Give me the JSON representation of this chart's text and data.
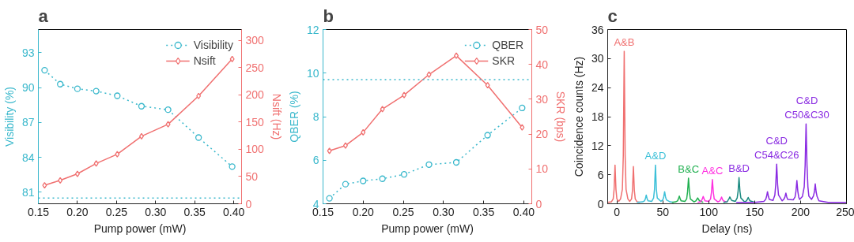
{
  "chart_data": [
    {
      "type": "line",
      "title": "a",
      "xlabel": "Pump power (mW)",
      "ylabel": "Visibility (%)",
      "y2label": "Nsift (Hz)",
      "x": [
        0.158,
        0.178,
        0.2,
        0.224,
        0.251,
        0.282,
        0.316,
        0.355,
        0.398
      ],
      "xlim": [
        0.15,
        0.41
      ],
      "xticks": [
        0.15,
        {
          "value": 0.2,
          "label": "0.20"
        },
        0.25,
        {
          "value": 0.3,
          "label": "0.30"
        },
        0.35,
        {
          "value": 0.4,
          "label": "0.40"
        }
      ],
      "ylim": [
        80,
        95
      ],
      "yticks": [
        81,
        84,
        87,
        90,
        93
      ],
      "y2lim": [
        0,
        320
      ],
      "y2ticks": [
        0,
        50,
        100,
        150,
        200,
        250,
        300
      ],
      "legend": "top right",
      "ref_lines": [
        {
          "axis": "y",
          "value": 80.5,
          "color": "#3ab8cc",
          "line_style": "dotted"
        }
      ],
      "series": [
        {
          "name": "Visibility",
          "color": "#3ab8cc",
          "marker": "circle",
          "line_style": "dotted",
          "values": [
            91.5,
            90.3,
            89.9,
            89.7,
            89.3,
            88.4,
            88.1,
            85.7,
            83.2
          ]
        },
        {
          "name": "Nsift",
          "color": "#f07070",
          "marker": "diamond",
          "line_style": "solid",
          "axis": "y2",
          "values": [
            34,
            43,
            55,
            74,
            91,
            124,
            146,
            198,
            266
          ]
        }
      ]
    },
    {
      "type": "line",
      "title": "b",
      "xlabel": "Pump power (mW)",
      "ylabel": "QBER (%)",
      "y2label": "SKR (bps)",
      "x": [
        0.158,
        0.178,
        0.2,
        0.224,
        0.251,
        0.282,
        0.316,
        0.355,
        0.398
      ],
      "xlim": [
        0.15,
        0.41
      ],
      "xticks": [
        0.15,
        {
          "value": 0.2,
          "label": "0.20"
        },
        0.25,
        {
          "value": 0.3,
          "label": "0.30"
        },
        0.35,
        {
          "value": 0.4,
          "label": "0.40"
        }
      ],
      "ylim": [
        4,
        12
      ],
      "yticks": [
        4,
        6,
        8,
        10,
        12
      ],
      "y2lim": [
        0,
        50
      ],
      "y2ticks": [
        0,
        10,
        20,
        30,
        40,
        50
      ],
      "legend": "top right",
      "ref_lines": [
        {
          "axis": "y",
          "value": 9.7,
          "color": "#3ab8cc",
          "line_style": "dotted"
        }
      ],
      "series": [
        {
          "name": "QBER",
          "color": "#3ab8cc",
          "marker": "circle",
          "line_style": "dotted",
          "values": [
            4.25,
            4.9,
            5.05,
            5.15,
            5.35,
            5.8,
            5.9,
            7.15,
            8.4
          ]
        },
        {
          "name": "SKR",
          "color": "#f07070",
          "marker": "diamond",
          "line_style": "solid",
          "axis": "y2",
          "values": [
            15.2,
            16.7,
            20.5,
            27.2,
            31.2,
            37.1,
            42.5,
            34.0,
            21.9
          ]
        }
      ]
    },
    {
      "type": "line",
      "title": "c",
      "xlabel": "Delay (ns)",
      "ylabel": "Coincidence counts (Hz)",
      "xlim": [
        -10,
        250
      ],
      "xticks": [
        0,
        50,
        100,
        150,
        200,
        250
      ],
      "ylim": [
        0,
        36
      ],
      "yticks": [
        0,
        6,
        12,
        18,
        24,
        30,
        36
      ],
      "annotations": [
        {
          "text": "A&B",
          "x": 8,
          "y": 31.5
        },
        {
          "text": "A&D",
          "x": 42,
          "y": 8
        },
        {
          "text": "B&C",
          "x": 78,
          "y": 5.3
        },
        {
          "text": "A&C",
          "x": 104,
          "y": 5
        },
        {
          "text": "B&D",
          "x": 133,
          "y": 5.4
        },
        {
          "text": "C&D\nC54&C26",
          "x": 174,
          "y": 8.2
        },
        {
          "text": "C&D\nC50&C30",
          "x": 207,
          "y": 16.5
        }
      ],
      "series": [
        {
          "color": "#f07070",
          "x": [
            -10,
            -6,
            -4,
            -3,
            -2,
            -1,
            0,
            2,
            4,
            6,
            7,
            8,
            9,
            10,
            12,
            14,
            16,
            17,
            18,
            19,
            20,
            22,
            25
          ],
          "values": [
            0.3,
            0.4,
            1,
            3,
            8,
            3,
            1,
            0.5,
            1,
            3,
            10,
            31.5,
            10,
            3,
            1,
            0.5,
            1,
            2.8,
            7.7,
            2.8,
            1,
            0.4,
            0.3
          ]
        },
        {
          "color": "#3cc0d8",
          "x": [
            22,
            28,
            30,
            31,
            32,
            33,
            34,
            38,
            40,
            41,
            42,
            43,
            44,
            48,
            50,
            51,
            52,
            53,
            54,
            58,
            62
          ],
          "values": [
            0.3,
            0.4,
            0.6,
            1,
            1.8,
            1,
            0.6,
            0.5,
            1.2,
            3,
            8,
            3,
            1.2,
            0.5,
            0.8,
            1.4,
            2.5,
            1.4,
            0.8,
            0.4,
            0.3
          ]
        },
        {
          "color": "#20b050",
          "x": [
            60,
            64,
            66,
            67,
            68,
            69,
            70,
            74,
            76,
            77,
            78,
            79,
            80,
            84,
            86,
            87,
            88,
            89,
            90,
            94
          ],
          "values": [
            0.3,
            0.4,
            0.6,
            1,
            1.6,
            1,
            0.6,
            0.5,
            1,
            2.5,
            5.3,
            2.5,
            1,
            0.4,
            0.6,
            0.9,
            1.2,
            0.9,
            0.6,
            0.3
          ]
        },
        {
          "color": "#ff30e0",
          "x": [
            88,
            91,
            92,
            93,
            94,
            95,
            96,
            100,
            102,
            103,
            104,
            105,
            106,
            110,
            112,
            113,
            114,
            115,
            116,
            120
          ],
          "values": [
            0.3,
            0.4,
            0.6,
            1,
            1.5,
            1,
            0.6,
            0.5,
            1,
            2.4,
            5,
            2.4,
            1,
            0.4,
            0.6,
            0.9,
            1.4,
            0.9,
            0.6,
            0.3
          ]
        },
        {
          "color": "#1a8a80",
          "x": [
            116,
            120,
            121,
            122,
            123,
            124,
            125,
            129,
            131,
            132,
            133,
            134,
            135,
            139,
            141,
            142,
            143,
            144,
            145,
            150
          ],
          "values": [
            0.3,
            0.4,
            0.7,
            1,
            1.4,
            1,
            0.7,
            0.5,
            1.2,
            2.6,
            5.4,
            2.6,
            1.2,
            0.4,
            0.6,
            0.9,
            1.3,
            0.9,
            0.6,
            0.3
          ]
        },
        {
          "color": "#8a2be2",
          "x": [
            130,
            150,
            160,
            162,
            163,
            164,
            165,
            166,
            170,
            172,
            173,
            174,
            175,
            176,
            180,
            182,
            183,
            184,
            185,
            186,
            192,
            194,
            195,
            196,
            197,
            198,
            199,
            202,
            204,
            205,
            206,
            207,
            208,
            209,
            212,
            214,
            215,
            216,
            217,
            218,
            220,
            230,
            250
          ],
          "values": [
            0.3,
            0.3,
            0.5,
            0.9,
            1.5,
            2.5,
            1.5,
            0.9,
            0.7,
            1.8,
            4,
            8.2,
            4,
            1.8,
            0.6,
            1,
            1.4,
            2.2,
            1.4,
            0.9,
            0.8,
            1.4,
            2.6,
            4.8,
            2.6,
            1.4,
            0.9,
            1.5,
            3.5,
            8,
            16.5,
            8,
            3.5,
            1.6,
            0.9,
            1.6,
            2.4,
            4.1,
            2.4,
            1.5,
            0.6,
            0.3,
            0.3
          ]
        }
      ]
    }
  ]
}
